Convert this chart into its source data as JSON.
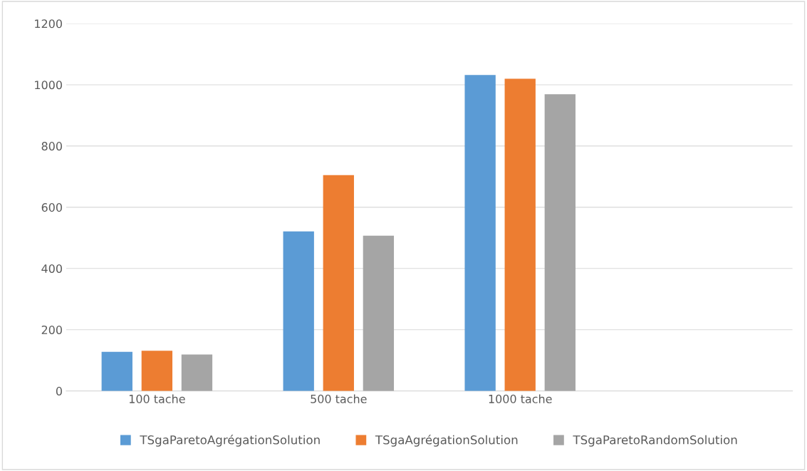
{
  "chart_data": {
    "type": "bar",
    "categories": [
      "100 tache",
      "500 tache",
      "1000 tache",
      null
    ],
    "series": [
      {
        "name": "TSgaParetoAgrégationSolution",
        "color": "#5b9bd5",
        "values": [
          128,
          521,
          1032,
          null
        ]
      },
      {
        "name": "TSgaAgrégationSolution",
        "color": "#ed7d31",
        "values": [
          131,
          705,
          1020,
          null
        ]
      },
      {
        "name": "TSgaParetoRandomSolution",
        "color": "#a5a5a5",
        "values": [
          119,
          507,
          969,
          null
        ]
      }
    ],
    "ylim": [
      0,
      1200
    ],
    "yticks": [
      0,
      200,
      400,
      600,
      800,
      1000,
      1200
    ],
    "grid": "y",
    "legend": "bottom"
  }
}
